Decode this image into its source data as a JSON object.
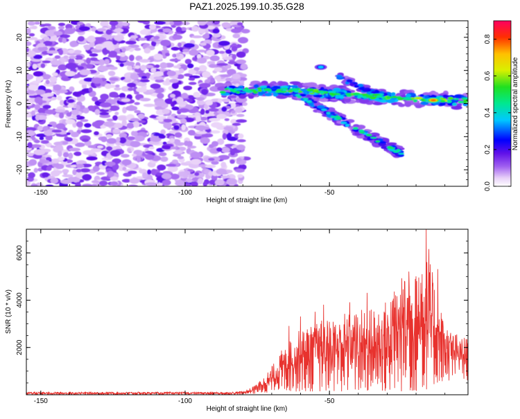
{
  "title": "PAZ1.2025.199.10.35.G28",
  "chart_data": [
    {
      "type": "heatmap",
      "xlabel": "Height of straight line (km)",
      "ylabel": "Frequency (Hz)",
      "xlim": [
        -155,
        -2
      ],
      "ylim": [
        -25,
        25
      ],
      "x_ticks": [
        "-150",
        "-100",
        "-50"
      ],
      "y_ticks": [
        "-20",
        "-10",
        "0",
        "10",
        "20"
      ],
      "colorbar": {
        "label": "Normalized spectral amplitude",
        "range": [
          0,
          0.9
        ],
        "ticks": [
          "0.0",
          "0.2",
          "0.4",
          "0.6",
          "0.8"
        ]
      },
      "features": {
        "noise_region_x": [
          -155,
          -79
        ],
        "main_ridge": [
          [
            -87,
            4
          ],
          [
            -70,
            4
          ],
          [
            -60,
            4
          ],
          [
            -50,
            3
          ],
          [
            -40,
            2.5
          ],
          [
            -30,
            2
          ],
          [
            -15,
            1
          ],
          [
            -2,
            1
          ]
        ],
        "secondary_ridge": [
          [
            -62,
            3
          ],
          [
            -50,
            -3
          ],
          [
            -40,
            -8
          ],
          [
            -30,
            -13
          ],
          [
            -25,
            -15
          ]
        ],
        "upper_branch": [
          [
            -47,
            8
          ],
          [
            -40,
            5
          ],
          [
            -33,
            3
          ]
        ],
        "isolated_blob": [
          -53,
          11
        ],
        "peak": [
          -14,
          1
        ]
      }
    },
    {
      "type": "line",
      "xlabel": "Height of straight line (km)",
      "ylabel": "SNR (10 * v/v)",
      "xlim": [
        -155,
        -2
      ],
      "ylim": [
        0,
        7000
      ],
      "x_ticks": [
        "-150",
        "-100",
        "-50"
      ],
      "y_ticks": [
        "2000",
        "4000",
        "6000"
      ],
      "line_color": "#e8322e",
      "envelope": {
        "x": [
          -155,
          -100,
          -85,
          -80,
          -77,
          -73,
          -70,
          -67,
          -65,
          -60,
          -55,
          -52,
          -48,
          -45,
          -40,
          -35,
          -30,
          -27,
          -23,
          -20,
          -18,
          -15,
          -13,
          -10,
          -8,
          -5,
          -2
        ],
        "low": [
          0,
          0,
          0,
          20,
          40,
          80,
          120,
          150,
          150,
          150,
          150,
          150,
          150,
          150,
          150,
          150,
          150,
          150,
          150,
          150,
          150,
          300,
          500,
          600,
          600,
          600,
          600
        ],
        "high": [
          120,
          120,
          120,
          150,
          300,
          700,
          1200,
          1800,
          2200,
          2800,
          3000,
          3200,
          3400,
          3500,
          3600,
          3700,
          4000,
          4700,
          5200,
          5600,
          6100,
          5600,
          4300,
          3100,
          2800,
          2500,
          2400
        ]
      },
      "spikes": [
        [
          -15.5,
          6150
        ],
        [
          -16.5,
          7000
        ],
        [
          -12.5,
          5300
        ],
        [
          -20,
          5000
        ],
        [
          -22.5,
          5200
        ],
        [
          -24,
          4800
        ],
        [
          -37,
          4300
        ],
        [
          -43,
          3900
        ],
        [
          -52,
          3800
        ],
        [
          -55,
          3500
        ],
        [
          -60,
          3300
        ],
        [
          -64,
          2900
        ]
      ]
    }
  ]
}
